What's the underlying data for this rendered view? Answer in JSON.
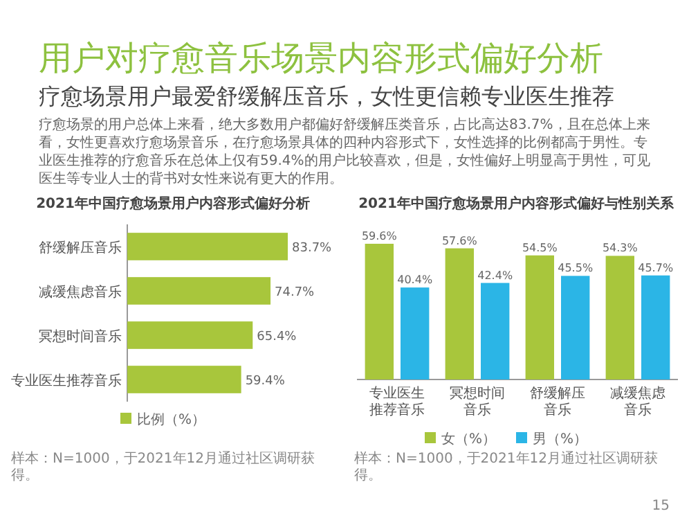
{
  "chart_data": [
    {
      "type": "other",
      "title": "用户对疗愈音乐场景内容形式偏好分析",
      "subtitle": "疗愈场景用户最爱舒缓解压音乐，女性更信赖专业医生推荐",
      "annotations": [
        "疗愈场景的用户总体上来看，绝大多数用户都偏好舒缓解压类音乐，占比高达83.7%，且在总体上来看，女性更喜欢疗愈场景音乐，在疗愈场景具体的四种内容形式下，女性选择的比例都高于男性。专业医生推荐的疗愈音乐在总体上仅有59.4%的用户比较喜欢，但是，女性偏好上明显高于男性，可见医生等专业人士的背书对女性来说有更大的作用。",
        "15"
      ]
    },
    {
      "type": "bar",
      "orientation": "horizontal",
      "title": "2021年中国疗愈场景用户内容形式偏好分析",
      "categories": [
        "舒缓解压音乐",
        "减缓焦虑音乐",
        "冥想时间音乐",
        "专业医生推荐音乐"
      ],
      "legend": "bottom",
      "series": [
        {
          "name": "比例（%）",
          "color": "#a8c63c",
          "values": [
            83.7,
            74.7,
            65.4,
            59.4
          ],
          "value_labels": [
            "83.7%",
            "74.7%",
            "65.4%",
            "59.4%"
          ]
        }
      ],
      "annotations": [
        "样本：N=1000，于2021年12月通过社区调研获得。"
      ]
    },
    {
      "type": "bar",
      "title": "2021年中国疗愈场景用户内容形式偏好与性别关系",
      "categories": [
        "专业医生推荐音乐",
        "冥想时间音乐",
        "舒缓解压音乐",
        "减缓焦虑音乐"
      ],
      "legend": "bottom",
      "series": [
        {
          "name": "女（%）",
          "color": "#a8c63c",
          "values": [
            59.6,
            57.6,
            54.5,
            54.3
          ],
          "value_labels": [
            "59.6%",
            "57.6%",
            "54.5%",
            "54.3%"
          ]
        },
        {
          "name": "男（%）",
          "color": "#2bb5e6",
          "values": [
            40.4,
            42.4,
            45.5,
            45.7
          ],
          "value_labels": [
            "40.4%",
            "42.4%",
            "45.5%",
            "45.7%"
          ]
        }
      ],
      "annotations": [
        "样本：N=1000，于2021年12月通过社区调研获得。"
      ]
    }
  ]
}
